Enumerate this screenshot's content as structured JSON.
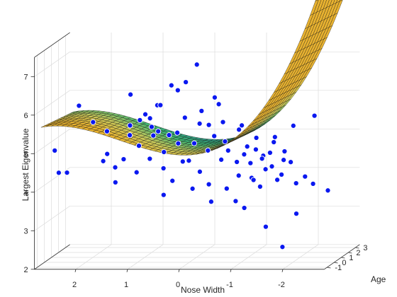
{
  "chart_data": {
    "type": "scatter",
    "subtype": "3d scatter with fitted surface",
    "title": "",
    "xlabel": "Nose Width",
    "ylabel": "Age",
    "zlabel": "Largest Eigenvalue",
    "xlim": [
      -2.8,
      2.8
    ],
    "ylim": [
      -1.4,
      3.6
    ],
    "zlim": [
      2,
      7.5
    ],
    "x_ticks": [
      "2",
      "1",
      "0",
      "-1",
      "-2"
    ],
    "x_tick_values": [
      2,
      1,
      0,
      -1,
      -2
    ],
    "y_ticks": [
      "-1",
      "0",
      "1",
      "2",
      "3"
    ],
    "y_tick_values": [
      -1,
      0,
      1,
      2,
      3
    ],
    "z_ticks": [
      "2",
      "3",
      "4",
      "5",
      "6",
      "7"
    ],
    "z_tick_values": [
      2,
      3,
      4,
      5,
      6,
      7
    ],
    "grid": true,
    "legend": "none",
    "surface": {
      "description": "cubic-like fit over Nose Width, nearly constant along Age",
      "colormap": [
        "#1f2d6b",
        "#2a7f8e",
        "#3cb371",
        "#c9c85a",
        "#e8b230"
      ],
      "edge_color": "#111111"
    },
    "marker_color": "#0a18f0",
    "marker_edge": "#ffffff",
    "points": [
      {
        "x": 2.6,
        "y": 0.0,
        "z": 4.9
      },
      {
        "x": 2.55,
        "y": 0.2,
        "z": 4.3
      },
      {
        "x": 2.5,
        "y": 1.0,
        "z": 4.2
      },
      {
        "x": 2.2,
        "y": 0.5,
        "z": 6.0
      },
      {
        "x": 1.9,
        "y": 0.3,
        "z": 5.6
      },
      {
        "x": 1.7,
        "y": 0.8,
        "z": 5.3
      },
      {
        "x": 1.6,
        "y": 0.1,
        "z": 4.8
      },
      {
        "x": 1.5,
        "y": 0.5,
        "z": 4.4
      },
      {
        "x": 1.4,
        "y": -0.2,
        "z": 4.1
      },
      {
        "x": 1.3,
        "y": 1.2,
        "z": 6.2
      },
      {
        "x": 1.2,
        "y": 0.4,
        "z": 5.5
      },
      {
        "x": 1.15,
        "y": 0.0,
        "z": 5.3
      },
      {
        "x": 1.05,
        "y": 0.7,
        "z": 5.6
      },
      {
        "x": 1.0,
        "y": 0.2,
        "z": 5.0
      },
      {
        "x": 0.95,
        "y": -0.5,
        "z": 4.4
      },
      {
        "x": 0.9,
        "y": 1.5,
        "z": 5.1
      },
      {
        "x": 0.85,
        "y": 0.9,
        "z": 5.4
      },
      {
        "x": 0.8,
        "y": 0.3,
        "z": 5.7
      },
      {
        "x": 0.75,
        "y": -0.1,
        "z": 4.7
      },
      {
        "x": 0.7,
        "y": 0.6,
        "z": 6.0
      },
      {
        "x": 0.65,
        "y": 1.1,
        "z": 4.3
      },
      {
        "x": 0.6,
        "y": 0.0,
        "z": 5.4
      },
      {
        "x": 0.55,
        "y": 0.4,
        "z": 3.7
      },
      {
        "x": 0.5,
        "y": 0.8,
        "z": 5.2
      },
      {
        "x": 0.45,
        "y": -0.3,
        "z": 4.9
      },
      {
        "x": 0.4,
        "y": 1.3,
        "z": 6.3
      },
      {
        "x": 0.35,
        "y": 0.2,
        "z": 4.1
      },
      {
        "x": 0.3,
        "y": 0.5,
        "z": 5.3
      },
      {
        "x": 0.25,
        "y": 0.9,
        "z": 4.5
      },
      {
        "x": 0.2,
        "y": -0.1,
        "z": 5.1
      },
      {
        "x": 0.15,
        "y": 0.6,
        "z": 6.6
      },
      {
        "x": 0.1,
        "y": 1.8,
        "z": 6.9
      },
      {
        "x": 0.05,
        "y": 0.3,
        "z": 4.6
      },
      {
        "x": 0.0,
        "y": 0.7,
        "z": 5.0
      },
      {
        "x": -0.05,
        "y": 0.1,
        "z": 3.9
      },
      {
        "x": -0.1,
        "y": 1.0,
        "z": 5.8
      },
      {
        "x": -0.15,
        "y": 0.4,
        "z": 4.3
      },
      {
        "x": -0.2,
        "y": 0.0,
        "z": 5.6
      },
      {
        "x": -0.25,
        "y": 0.8,
        "z": 4.8
      },
      {
        "x": -0.3,
        "y": 1.4,
        "z": 6.1
      },
      {
        "x": -0.35,
        "y": 0.2,
        "z": 4.0
      },
      {
        "x": -0.4,
        "y": 0.6,
        "z": 5.2
      },
      {
        "x": -0.45,
        "y": -0.2,
        "z": 3.6
      },
      {
        "x": -0.5,
        "y": 1.1,
        "z": 5.5
      },
      {
        "x": -0.55,
        "y": 0.5,
        "z": 4.6
      },
      {
        "x": -0.6,
        "y": 0.9,
        "z": 3.8
      },
      {
        "x": -0.65,
        "y": 0.3,
        "z": 5.1
      },
      {
        "x": -0.7,
        "y": 1.6,
        "z": 4.4
      },
      {
        "x": -0.75,
        "y": 0.0,
        "z": 4.9
      },
      {
        "x": -0.8,
        "y": 0.7,
        "z": 3.5
      },
      {
        "x": -0.85,
        "y": 1.2,
        "z": 5.4
      },
      {
        "x": -0.9,
        "y": 0.4,
        "z": 4.2
      },
      {
        "x": -0.95,
        "y": 0.8,
        "z": 4.7
      },
      {
        "x": -1.0,
        "y": 1.5,
        "z": 4.0
      },
      {
        "x": -1.05,
        "y": 0.1,
        "z": 3.4
      },
      {
        "x": -1.1,
        "y": 0.6,
        "z": 4.5
      },
      {
        "x": -1.15,
        "y": 1.0,
        "z": 4.8
      },
      {
        "x": -1.2,
        "y": 0.3,
        "z": 4.1
      },
      {
        "x": -1.25,
        "y": 1.3,
        "z": 4.6
      },
      {
        "x": -1.3,
        "y": 0.5,
        "z": 3.9
      },
      {
        "x": -1.35,
        "y": 0.9,
        "z": 4.3
      },
      {
        "x": -1.4,
        "y": 1.7,
        "z": 4.9
      },
      {
        "x": -1.45,
        "y": 0.2,
        "z": 2.9
      },
      {
        "x": -1.5,
        "y": 0.7,
        "z": 4.4
      },
      {
        "x": -1.55,
        "y": 1.1,
        "z": 4.0
      },
      {
        "x": -1.6,
        "y": 0.4,
        "z": 5.2
      },
      {
        "x": -1.65,
        "y": 1.4,
        "z": 4.7
      },
      {
        "x": -1.7,
        "y": 0.6,
        "z": 4.2
      },
      {
        "x": -1.75,
        "y": 1.9,
        "z": 5.3
      },
      {
        "x": -1.8,
        "y": 0.0,
        "z": 2.4
      },
      {
        "x": -1.85,
        "y": 0.8,
        "z": 4.5
      },
      {
        "x": -1.9,
        "y": 1.2,
        "z": 3.9
      },
      {
        "x": -2.0,
        "y": 0.5,
        "z": 3.2
      },
      {
        "x": -2.1,
        "y": 1.0,
        "z": 4.1
      },
      {
        "x": -2.2,
        "y": 1.6,
        "z": 5.6
      },
      {
        "x": -2.35,
        "y": 0.3,
        "z": 4.0
      },
      {
        "x": -2.5,
        "y": 1.3,
        "z": 3.7
      },
      {
        "x": 1.8,
        "y": 1.0,
        "z": 4.5
      },
      {
        "x": 1.35,
        "y": 0.6,
        "z": 4.6
      },
      {
        "x": 0.55,
        "y": 1.5,
        "z": 6.4
      },
      {
        "x": -0.35,
        "y": 1.6,
        "z": 5.9
      },
      {
        "x": -0.7,
        "y": 1.9,
        "z": 5.2
      },
      {
        "x": -1.05,
        "y": 1.8,
        "z": 5.0
      },
      {
        "x": -1.3,
        "y": 1.9,
        "z": 4.6
      },
      {
        "x": -1.55,
        "y": 2.0,
        "z": 4.4
      },
      {
        "x": -0.2,
        "y": 1.3,
        "z": 5.4
      },
      {
        "x": 0.25,
        "y": 1.2,
        "z": 5.6
      },
      {
        "x": 0.75,
        "y": 1.4,
        "z": 5.9
      },
      {
        "x": -0.9,
        "y": 1.6,
        "z": 4.8
      },
      {
        "x": -1.2,
        "y": 1.5,
        "z": 4.5
      },
      {
        "x": 1.0,
        "y": 1.1,
        "z": 5.7
      },
      {
        "x": 0.45,
        "y": 0.9,
        "z": 4.0
      }
    ]
  }
}
